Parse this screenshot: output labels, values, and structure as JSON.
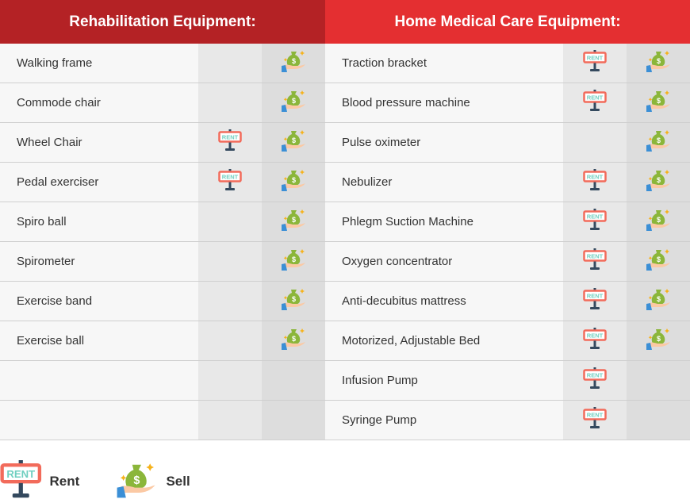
{
  "colors": {
    "left_header": "#b42225",
    "right_header": "#e42f31",
    "rent_sign": "#f26b5b",
    "rent_text": "#6fcfc0",
    "money_bag": "#8bb63a",
    "sleeve": "#3b8fd6"
  },
  "icons": {
    "rent": "rent-sign-icon",
    "sell": "money-bag-hand-icon"
  },
  "left": {
    "title": "Rehabilitation Equipment:",
    "rows": [
      {
        "name": "Walking frame",
        "rent": false,
        "sell": true
      },
      {
        "name": "Commode chair",
        "rent": false,
        "sell": true
      },
      {
        "name": "Wheel Chair",
        "rent": true,
        "sell": true
      },
      {
        "name": "Pedal exerciser",
        "rent": true,
        "sell": true
      },
      {
        "name": "Spiro ball",
        "rent": false,
        "sell": true
      },
      {
        "name": "Spirometer",
        "rent": false,
        "sell": true
      },
      {
        "name": "Exercise band",
        "rent": false,
        "sell": true
      },
      {
        "name": "Exercise ball",
        "rent": false,
        "sell": true
      },
      {
        "name": "",
        "rent": false,
        "sell": false
      },
      {
        "name": "",
        "rent": false,
        "sell": false
      }
    ]
  },
  "right": {
    "title": "Home Medical Care Equipment:",
    "rows": [
      {
        "name": "Traction bracket",
        "rent": true,
        "sell": true
      },
      {
        "name": "Blood pressure machine",
        "rent": true,
        "sell": true
      },
      {
        "name": "Pulse oximeter",
        "rent": false,
        "sell": true
      },
      {
        "name": "Nebulizer",
        "rent": true,
        "sell": true
      },
      {
        "name": "Phlegm Suction Machine",
        "rent": true,
        "sell": true
      },
      {
        "name": "Oxygen concentrator",
        "rent": true,
        "sell": true
      },
      {
        "name": "Anti-decubitus mattress",
        "rent": true,
        "sell": true
      },
      {
        "name": "Motorized, Adjustable Bed",
        "rent": true,
        "sell": true
      },
      {
        "name": "Infusion Pump",
        "rent": true,
        "sell": false
      },
      {
        "name": "Syringe Pump",
        "rent": true,
        "sell": false
      }
    ]
  },
  "legend": {
    "rent_label": "Rent",
    "sell_label": "Sell",
    "sign_text": "RENT"
  }
}
